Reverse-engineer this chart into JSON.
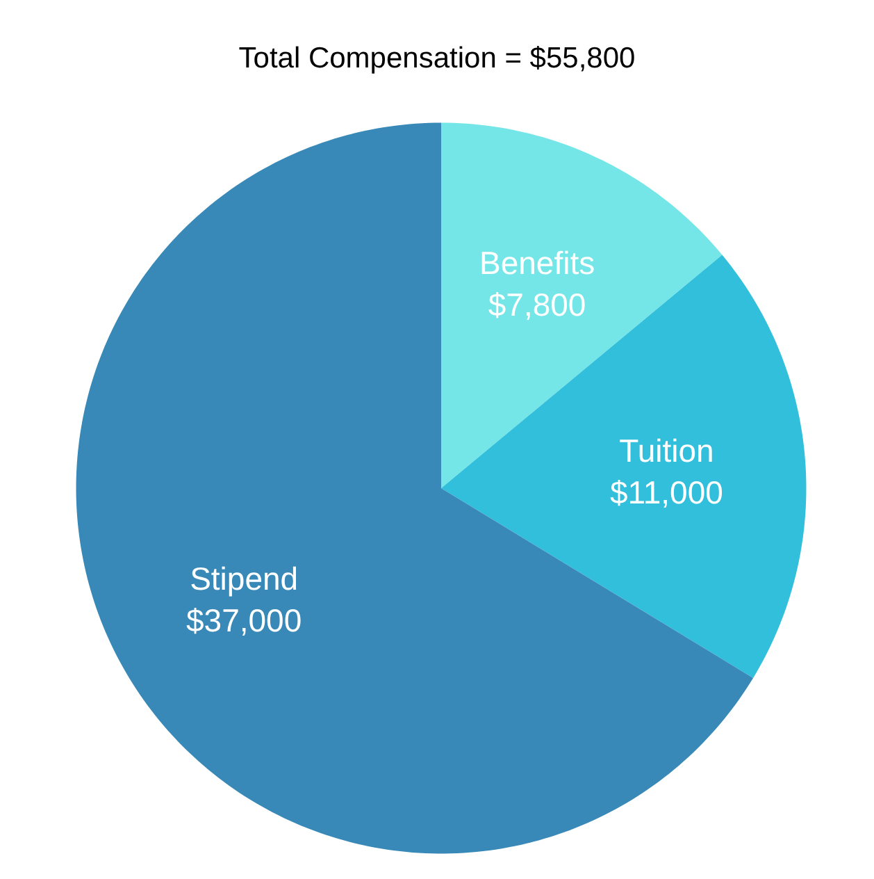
{
  "chart_data": {
    "type": "pie",
    "title": "Total Compensation = $55,800",
    "categories": [
      "Benefits",
      "Tuition",
      "Stipend"
    ],
    "values": [
      7800,
      11000,
      37000
    ],
    "value_labels": [
      "$7,800",
      "$11,000",
      "$37,000"
    ],
    "colors": [
      "#74e6e7",
      "#31bfdc",
      "#3889b8"
    ],
    "legend": false
  }
}
